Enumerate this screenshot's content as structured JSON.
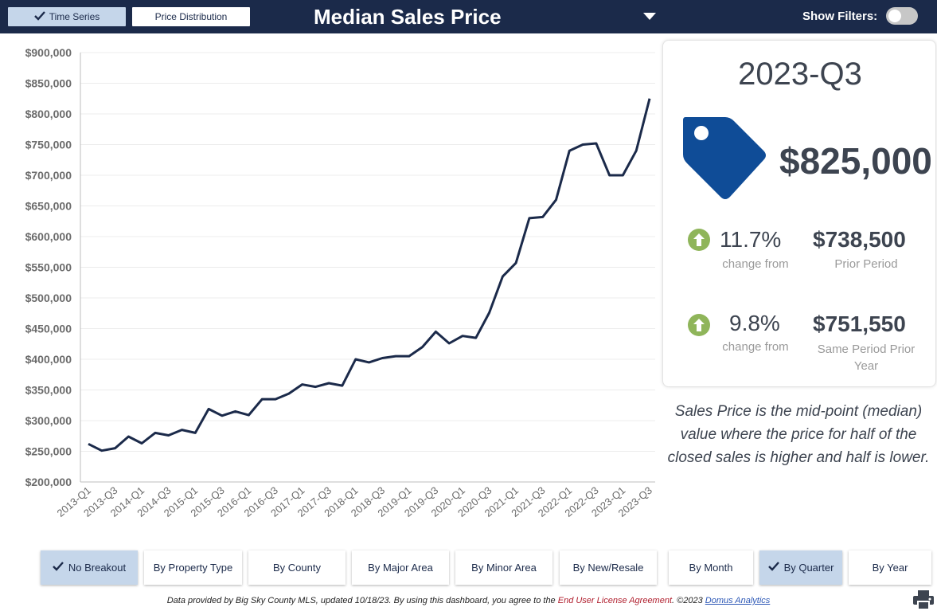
{
  "header": {
    "tabs": [
      {
        "label": "Time Series",
        "active": true
      },
      {
        "label": "Price Distribution",
        "active": false
      }
    ],
    "title": "Median Sales Price",
    "show_filters_label": "Show Filters:"
  },
  "summary": {
    "period": "2023-Q3",
    "value": "$825,000",
    "change1": {
      "pct": "11.7%",
      "label": "change from",
      "amount": "$738,500",
      "amount_label": "Prior Period"
    },
    "change2": {
      "pct": "9.8%",
      "label": "change from",
      "amount": "$751,550",
      "amount_label_1": "Same Period Prior",
      "amount_label_2": "Year"
    }
  },
  "note": {
    "line1": "Sales Price is the mid-point (median)",
    "line2": "value where the price for half of the",
    "line3": "closed sales is higher and half is lower."
  },
  "breakouts": [
    {
      "label": "No Breakout",
      "active": true
    },
    {
      "label": "By Property Type",
      "active": false
    },
    {
      "label": "By County",
      "active": false
    },
    {
      "label": "By Major Area",
      "active": false
    },
    {
      "label": "By Minor Area",
      "active": false
    },
    {
      "label": "By New/Resale",
      "active": false
    },
    {
      "label": "By Month",
      "active": false
    },
    {
      "label": "By Quarter",
      "active": true
    },
    {
      "label": "By Year",
      "active": false
    }
  ],
  "footer": {
    "prefix": "Data provided by Big Sky County MLS, updated 10/18/23.  By using this dashboard, you agree to the ",
    "eula": "End User License Agreement",
    "middle": ".  ©2023 ",
    "domus": "Domus Analytics"
  },
  "colors": {
    "header_bg": "#1b2a4a",
    "line": "#1b2a4a",
    "tag": "#0f4c97",
    "up": "#8fb55a",
    "active_btn": "#c5d6ea"
  },
  "icons": {
    "tag": "price-tag-icon",
    "up": "arrow-up-circle-icon",
    "print": "printer-icon",
    "check": "check-icon",
    "caret": "caret-down-icon"
  },
  "chart_data": {
    "type": "line",
    "x": [
      "2013-Q1",
      "2013-Q2",
      "2013-Q3",
      "2013-Q4",
      "2014-Q1",
      "2014-Q2",
      "2014-Q3",
      "2014-Q4",
      "2015-Q1",
      "2015-Q2",
      "2015-Q3",
      "2015-Q4",
      "2016-Q1",
      "2016-Q2",
      "2016-Q3",
      "2016-Q4",
      "2017-Q1",
      "2017-Q2",
      "2017-Q3",
      "2017-Q4",
      "2018-Q1",
      "2018-Q2",
      "2018-Q3",
      "2018-Q4",
      "2019-Q1",
      "2019-Q2",
      "2019-Q3",
      "2019-Q4",
      "2020-Q1",
      "2020-Q2",
      "2020-Q3",
      "2020-Q4",
      "2021-Q1",
      "2021-Q2",
      "2021-Q3",
      "2021-Q4",
      "2022-Q1",
      "2022-Q2",
      "2022-Q3",
      "2022-Q4",
      "2023-Q1",
      "2023-Q2",
      "2023-Q3"
    ],
    "xtick_labels": [
      "2013-Q1",
      "2013-Q3",
      "2014-Q1",
      "2014-Q3",
      "2015-Q1",
      "2015-Q3",
      "2016-Q1",
      "2016-Q3",
      "2017-Q1",
      "2017-Q3",
      "2018-Q1",
      "2018-Q3",
      "2019-Q1",
      "2019-Q3",
      "2020-Q1",
      "2020-Q3",
      "2021-Q1",
      "2021-Q3",
      "2022-Q1",
      "2022-Q3",
      "2023-Q1",
      "2023-Q3"
    ],
    "series": [
      {
        "values": [
          262000,
          251000,
          255000,
          274000,
          263000,
          280000,
          276000,
          285000,
          280000,
          319000,
          308000,
          315000,
          309000,
          335000,
          335000,
          344000,
          359000,
          355000,
          361000,
          357000,
          400000,
          395000,
          402000,
          405000,
          405000,
          420000,
          445000,
          426000,
          438000,
          435000,
          476000,
          535000,
          557000,
          630000,
          632000,
          660000,
          740000,
          750000,
          752000,
          700000,
          700000,
          740000,
          825000
        ]
      }
    ],
    "yticks": [
      "$200,000",
      "$250,000",
      "$300,000",
      "$350,000",
      "$400,000",
      "$450,000",
      "$500,000",
      "$550,000",
      "$600,000",
      "$650,000",
      "$700,000",
      "$750,000",
      "$800,000",
      "$850,000",
      "$900,000"
    ],
    "ylim": [
      200000,
      900000
    ],
    "grid": true,
    "title": "Median Sales Price"
  }
}
